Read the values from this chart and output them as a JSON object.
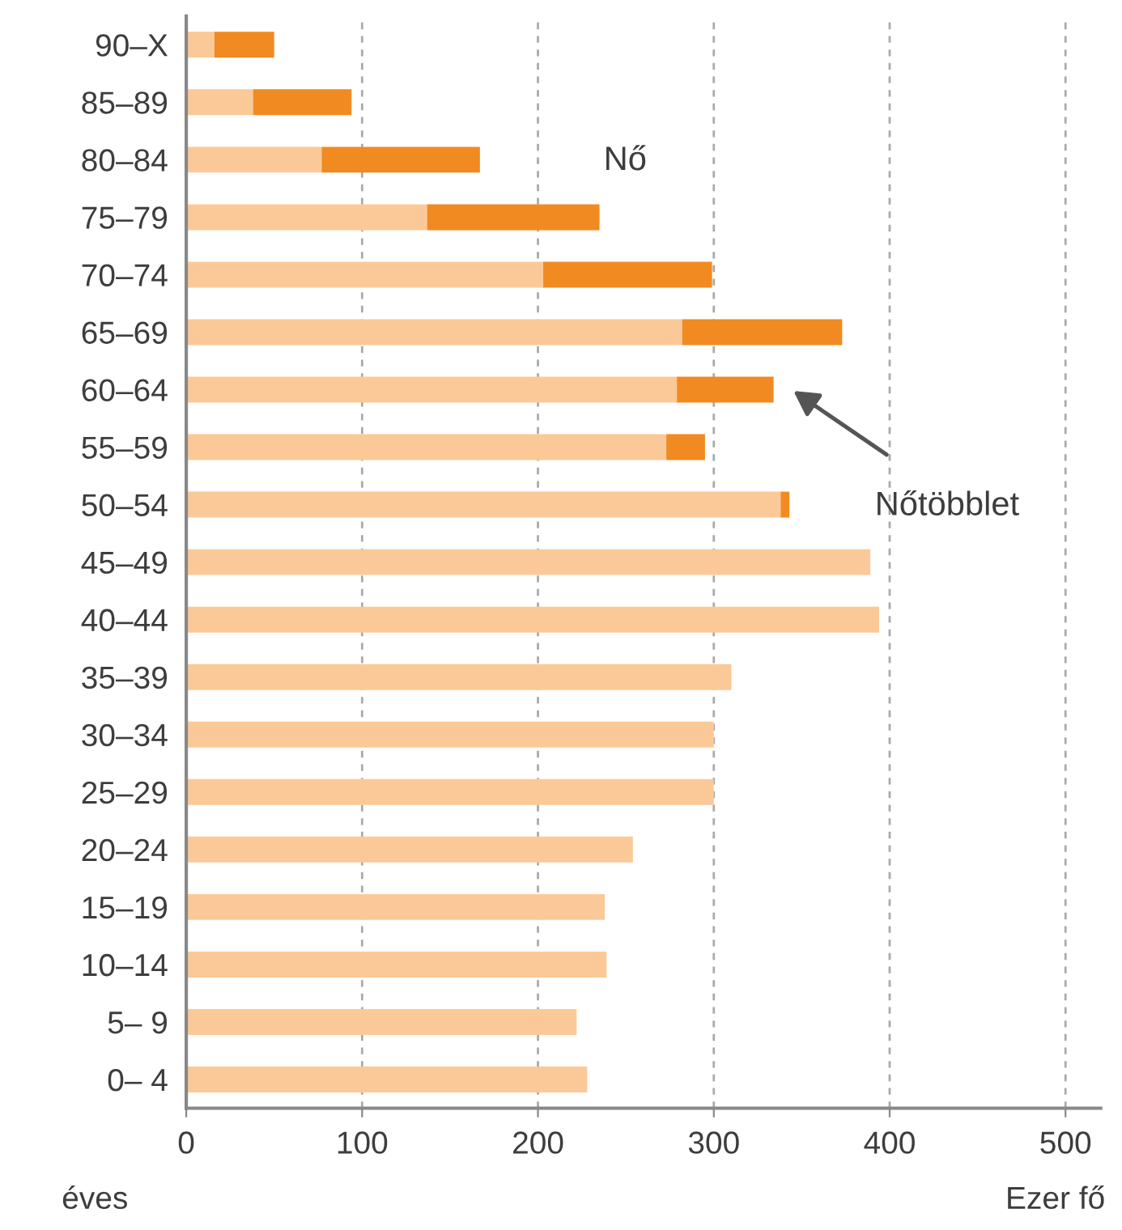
{
  "chart_data": {
    "type": "bar",
    "orientation": "horizontal",
    "stacked": true,
    "categories": [
      "90–X",
      "85–89",
      "80–84",
      "75–79",
      "70–74",
      "65–69",
      "60–64",
      "55–59",
      "50–54",
      "45–49",
      "40–44",
      "35–39",
      "30–34",
      "25–29",
      "20–24",
      "15–19",
      "10–14",
      "5– 9",
      "0– 4"
    ],
    "series": [
      {
        "color": "#fbc998",
        "values": [
          16,
          38,
          77,
          137,
          203,
          282,
          279,
          273,
          338,
          389,
          394,
          310,
          300,
          300,
          254,
          238,
          239,
          222,
          228
        ]
      },
      {
        "color": "#f18a21",
        "values": [
          34,
          56,
          90,
          98,
          96,
          91,
          55,
          22,
          5,
          null,
          null,
          null,
          null,
          null,
          null,
          null,
          null,
          null,
          null
        ]
      }
    ],
    "xlim": [
      0,
      520
    ],
    "xticks": [
      0,
      100,
      200,
      300,
      400,
      500
    ],
    "grid": "x",
    "xlabel": "Ezer fő",
    "ylabel": "éves",
    "annotations": [
      "Nő",
      "Nőtöbblet"
    ]
  }
}
